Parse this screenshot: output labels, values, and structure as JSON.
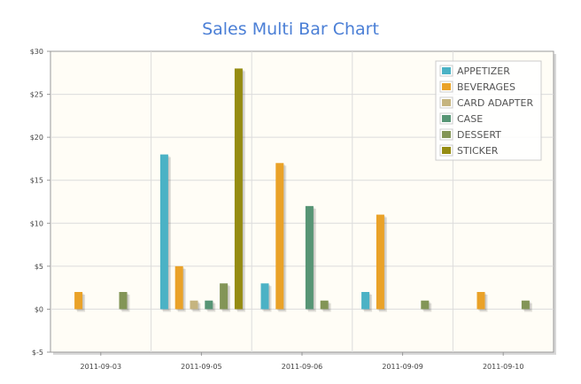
{
  "chart_data": {
    "type": "bar",
    "title": "Sales Multi Bar Chart",
    "xlabel": "",
    "ylabel": "",
    "categories": [
      "2011-09-03",
      "2011-09-05",
      "2011-09-06",
      "2011-09-09",
      "2011-09-10"
    ],
    "ylim": [
      -5,
      30
    ],
    "yticks": [
      -5,
      0,
      5,
      10,
      15,
      20,
      25,
      30
    ],
    "ytick_labels": [
      "$-5",
      "$0",
      "$5",
      "$10",
      "$15",
      "$20",
      "$25",
      "$30"
    ],
    "grid": true,
    "legend_position": "top-right",
    "series": [
      {
        "name": "APPETIZER",
        "color": "#4bb2c5",
        "values": [
          0,
          18,
          3,
          2,
          0
        ]
      },
      {
        "name": "BEVERAGES",
        "color": "#eaa228",
        "values": [
          2,
          5,
          17,
          11,
          2
        ]
      },
      {
        "name": "CARD ADAPTER",
        "color": "#c5b47f",
        "values": [
          0,
          1,
          0,
          0,
          0
        ]
      },
      {
        "name": "CASE",
        "color": "#579575",
        "values": [
          0,
          1,
          12,
          0,
          0
        ]
      },
      {
        "name": "DESSERT",
        "color": "#839557",
        "values": [
          2,
          3,
          1,
          1,
          1
        ]
      },
      {
        "name": "STICKER",
        "color": "#958c12",
        "values": [
          0,
          28,
          0,
          0,
          0
        ]
      }
    ]
  }
}
